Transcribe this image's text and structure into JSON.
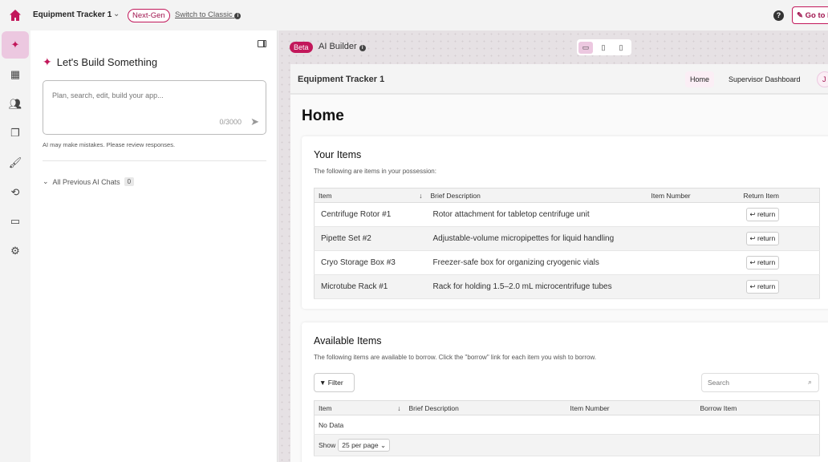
{
  "topbar": {
    "app_name": "Equipment Tracker 1",
    "badge": "Next-Gen",
    "switch_label": "Switch to Classic",
    "help": "?",
    "go_live": "Go to L"
  },
  "rail": {
    "items": [
      "ai-builder",
      "tables",
      "users",
      "pages",
      "theme",
      "workflows",
      "billing",
      "settings"
    ],
    "active": "ai-builder"
  },
  "panel": {
    "title": "Let's Build Something",
    "placeholder": "Plan, search, edit, build your app...",
    "counter": "0/3000",
    "disclaimer": "AI may make mistakes. Please review responses.",
    "previous_chats": "All Previous AI Chats",
    "previous_count": "0"
  },
  "canvas": {
    "beta": "Beta",
    "title": "AI Builder",
    "devices": [
      "desktop",
      "tablet",
      "mobile"
    ],
    "active_device": "desktop"
  },
  "app": {
    "title": "Equipment Tracker 1",
    "nav": [
      "Home",
      "Supervisor Dashboard"
    ],
    "avatar": "J",
    "page_title": "Home",
    "your_items": {
      "title": "Your Items",
      "subtitle": "The following are items in your possession:",
      "columns": [
        "Item",
        "Brief Description",
        "Item Number",
        "Return Item"
      ],
      "rows": [
        {
          "item": "Centrifuge Rotor #1",
          "desc": "Rotor attachment for tabletop centrifuge unit",
          "number": "",
          "action": "return"
        },
        {
          "item": "Pipette Set #2",
          "desc": "Adjustable-volume micropipettes for liquid handling",
          "number": "",
          "action": "return"
        },
        {
          "item": "Cryo Storage Box #3",
          "desc": "Freezer-safe box for organizing cryogenic vials",
          "number": "",
          "action": "return"
        },
        {
          "item": "Microtube Rack #1",
          "desc": "Rack for holding 1.5–2.0 mL microcentrifuge tubes",
          "number": "",
          "action": "return"
        }
      ]
    },
    "available": {
      "title": "Available Items",
      "subtitle": "The following items are available to borrow. Click the \"borrow\" link for each item you wish to borrow.",
      "filter": "Filter",
      "search_placeholder": "Search",
      "columns": [
        "Item",
        "Brief Description",
        "Item Number",
        "Borrow Item"
      ],
      "empty": "No Data",
      "show": "Show",
      "per_page": "25 per page"
    }
  },
  "colors": {
    "accent": "#c2185b",
    "accent_light": "#ecc8e0"
  }
}
